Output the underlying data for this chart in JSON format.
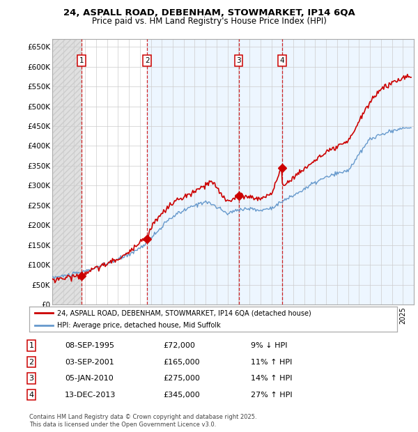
{
  "title": "24, ASPALL ROAD, DEBENHAM, STOWMARKET, IP14 6QA",
  "subtitle": "Price paid vs. HM Land Registry's House Price Index (HPI)",
  "ylabel_ticks": [
    "£0",
    "£50K",
    "£100K",
    "£150K",
    "£200K",
    "£250K",
    "£300K",
    "£350K",
    "£400K",
    "£450K",
    "£500K",
    "£550K",
    "£600K",
    "£650K"
  ],
  "ytick_values": [
    0,
    50000,
    100000,
    150000,
    200000,
    250000,
    300000,
    350000,
    400000,
    450000,
    500000,
    550000,
    600000,
    650000
  ],
  "ylim": [
    0,
    670000
  ],
  "xlim_start": 1993.0,
  "xlim_end": 2026.0,
  "sale_dates": [
    1995.69,
    2001.67,
    2010.01,
    2013.96
  ],
  "sale_prices": [
    72000,
    165000,
    275000,
    345000
  ],
  "sale_labels": [
    "1",
    "2",
    "3",
    "4"
  ],
  "legend_line1": "24, ASPALL ROAD, DEBENHAM, STOWMARKET, IP14 6QA (detached house)",
  "legend_line2": "HPI: Average price, detached house, Mid Suffolk",
  "table_rows": [
    {
      "num": "1",
      "date": "08-SEP-1995",
      "price": "£72,000",
      "hpi": "9% ↓ HPI"
    },
    {
      "num": "2",
      "date": "03-SEP-2001",
      "price": "£165,000",
      "hpi": "11% ↑ HPI"
    },
    {
      "num": "3",
      "date": "05-JAN-2010",
      "price": "£275,000",
      "hpi": "14% ↑ HPI"
    },
    {
      "num": "4",
      "date": "13-DEC-2013",
      "price": "£345,000",
      "hpi": "27% ↑ HPI"
    }
  ],
  "footnote": "Contains HM Land Registry data © Crown copyright and database right 2025.\nThis data is licensed under the Open Government Licence v3.0.",
  "price_line_color": "#cc0000",
  "hpi_line_color": "#6699cc",
  "vline_color": "#cc0000",
  "grid_color": "#cccccc",
  "sale_marker_color": "#cc0000",
  "box_color": "#cc0000",
  "band_color": "#ddeeff",
  "hatch_color": "#cccccc",
  "hatch_bg_color": "#e0e0e0"
}
